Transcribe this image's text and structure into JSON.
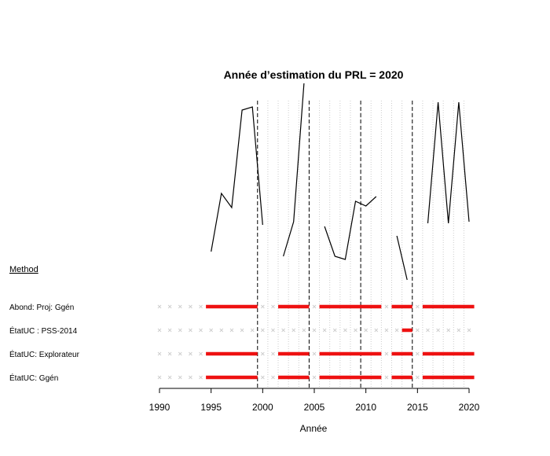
{
  "chart_data": {
    "type": "line",
    "title": "Année d’estimation du PRL = 2020",
    "xlabel": "Année",
    "xlim": [
      1990,
      2020
    ],
    "x_ticks": [
      1990,
      1995,
      2000,
      2005,
      2010,
      2015,
      2020
    ],
    "method_header": "Method",
    "vlines": [
      1999.5,
      2004.5,
      2009.5,
      2014.5
    ],
    "series": [
      {
        "points": [
          [
            1995,
            0.05
          ],
          [
            1996,
            0.42
          ],
          [
            1997,
            0.33
          ],
          [
            1998,
            0.95
          ],
          [
            1999,
            0.97
          ],
          [
            2000,
            0.22
          ],
          [
            2001,
            null
          ],
          [
            2002,
            0.02
          ],
          [
            2003,
            0.24
          ],
          [
            2004,
            1.12
          ],
          [
            2005,
            null
          ],
          [
            2006,
            0.21
          ],
          [
            2007,
            0.02
          ],
          [
            2008,
            0.0
          ],
          [
            2009,
            0.37
          ],
          [
            2010,
            0.34
          ],
          [
            2011,
            0.4
          ],
          [
            2012,
            null
          ],
          [
            2013,
            0.15
          ],
          [
            2014,
            -0.13
          ],
          [
            2015,
            null
          ],
          [
            2016,
            0.23
          ],
          [
            2017,
            1.0
          ],
          [
            2018,
            0.23
          ],
          [
            2019,
            1.0
          ],
          [
            2020,
            0.24
          ]
        ]
      }
    ],
    "methods": [
      {
        "name": "Abond: Proj: Ggén",
        "segments": [
          [
            1994.5,
            1999.5
          ],
          [
            2001.5,
            2004.5
          ],
          [
            2005.5,
            2011.5
          ],
          [
            2012.5,
            2014.5
          ],
          [
            2015.5,
            2020.5
          ]
        ]
      },
      {
        "name": "ÉtatUC : PSS-2014",
        "segments": [
          [
            2013.5,
            2014.5
          ]
        ]
      },
      {
        "name": "ÉtatUC: Explorateur",
        "segments": [
          [
            1994.5,
            1999.5
          ],
          [
            2001.5,
            2004.5
          ],
          [
            2005.5,
            2011.5
          ],
          [
            2012.5,
            2014.5
          ],
          [
            2015.5,
            2020.5
          ]
        ]
      },
      {
        "name": "ÉtatUC: Ggén",
        "segments": [
          [
            1994.5,
            1999.5
          ],
          [
            2001.5,
            2004.5
          ],
          [
            2005.5,
            2011.5
          ],
          [
            2012.5,
            2014.5
          ],
          [
            2015.5,
            2020.5
          ]
        ]
      }
    ],
    "colors": {
      "segment": "#ee1111",
      "line": "#000000",
      "marker": "#cfcfcf",
      "grid": "#cccccc"
    }
  }
}
